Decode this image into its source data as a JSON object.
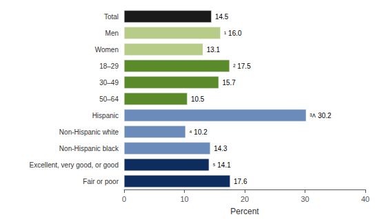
{
  "chart_data": {
    "type": "bar",
    "orientation": "horizontal",
    "categories": [
      "Fair or poor",
      "Excellent, very good, or good",
      "Non-Hispanic black",
      "Non-Hispanic white",
      "Hispanic",
      "50–64",
      "30–49",
      "18–29",
      "Women",
      "Men",
      "Total"
    ],
    "values": [
      17.6,
      14.1,
      14.3,
      10.2,
      30.2,
      10.5,
      15.7,
      17.5,
      13.1,
      16.0,
      14.5
    ],
    "value_labels": [
      "17.6",
      "⁵ 14.1",
      "14.3",
      "⁴ 10.2",
      "³˄ 30.2",
      "10.5",
      "15.7",
      "² 17.5",
      "13.1",
      "¹ 16.0",
      "14.5"
    ],
    "colors": [
      "#0d2d5e",
      "#0d2d5e",
      "#6b8cba",
      "#6b8cba",
      "#6b8cba",
      "#5a8a2a",
      "#5a8a2a",
      "#5a8a2a",
      "#b8cc8a",
      "#b8cc8a",
      "#1a1a1a"
    ],
    "xlabel": "Percent",
    "xlim": [
      0,
      40
    ],
    "xticks": [
      0,
      10,
      20,
      30,
      40
    ],
    "data_labels": true,
    "grid": false
  }
}
